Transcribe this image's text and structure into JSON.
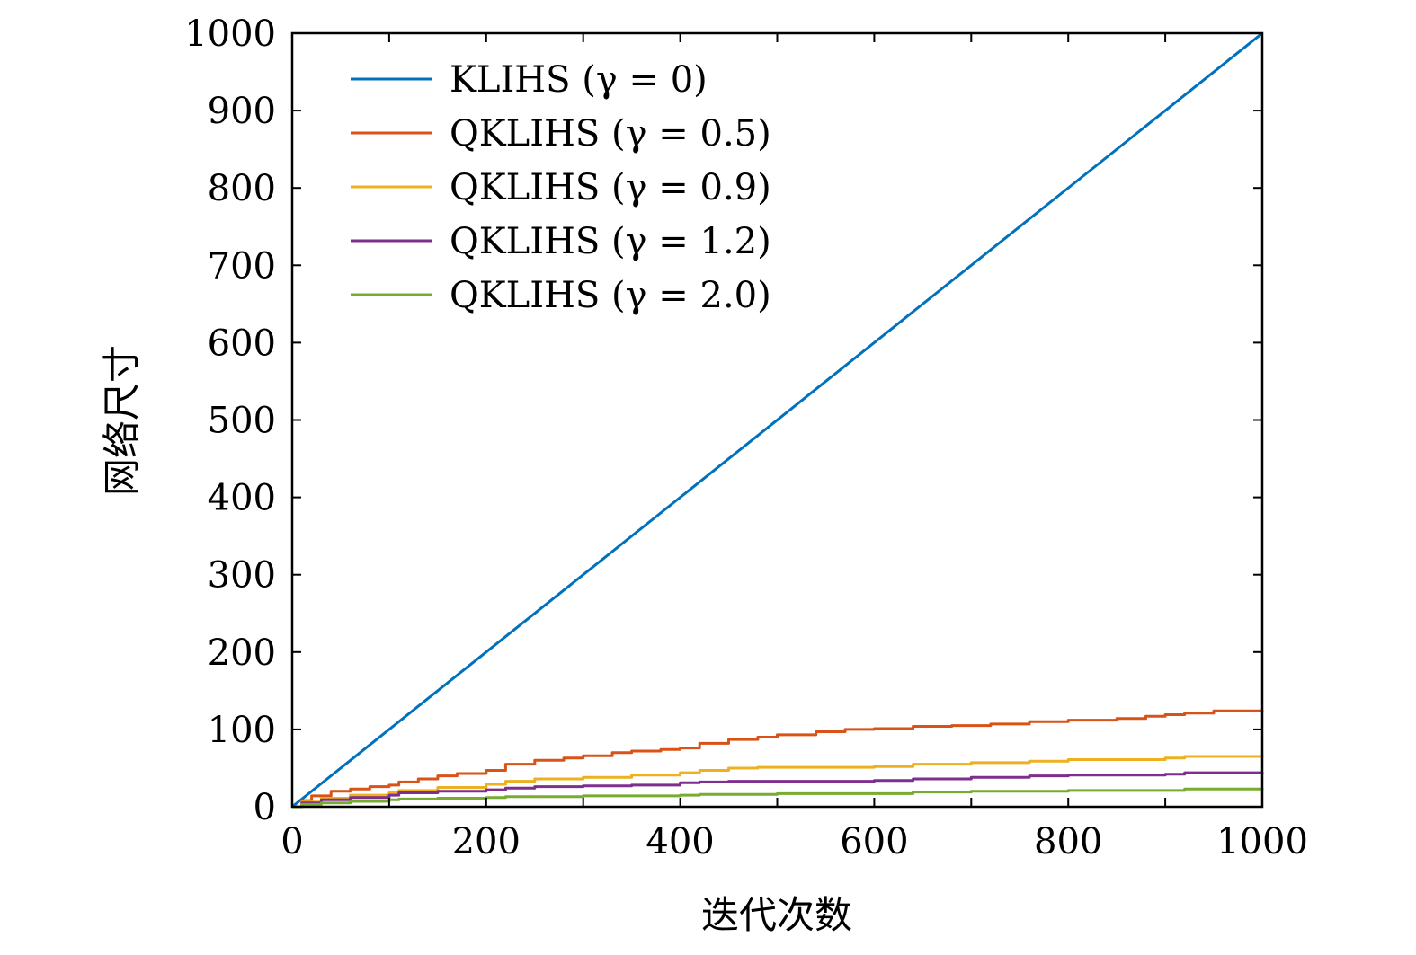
{
  "chart_data": {
    "type": "line",
    "title": "",
    "xlabel": "迭代次数",
    "ylabel": "网络尺寸",
    "xlim": [
      0,
      1000
    ],
    "ylim": [
      0,
      1000
    ],
    "xticks": [
      0,
      200,
      400,
      600,
      800,
      1000
    ],
    "yticks": [
      0,
      100,
      200,
      300,
      400,
      500,
      600,
      700,
      800,
      900,
      1000
    ],
    "xtick_labels": [
      "0",
      "200",
      "400",
      "600",
      "800",
      "1000"
    ],
    "ytick_labels": [
      "0",
      "100",
      "200",
      "300",
      "400",
      "500",
      "600",
      "700",
      "800",
      "900",
      "1000"
    ],
    "grid": false,
    "legend_position": "top-left",
    "series": [
      {
        "name": "KLIHS (γ = 0)",
        "color": "#0072BD",
        "x": [
          0,
          1000
        ],
        "y": [
          0,
          1000
        ]
      },
      {
        "name": "QKLIHS (γ = 0.5)",
        "color": "#D95319",
        "x": [
          0,
          10,
          20,
          40,
          60,
          80,
          100,
          110,
          130,
          150,
          170,
          200,
          220,
          250,
          280,
          300,
          330,
          350,
          380,
          400,
          420,
          450,
          480,
          500,
          540,
          570,
          600,
          640,
          680,
          720,
          760,
          800,
          850,
          880,
          900,
          920,
          950,
          1000
        ],
        "y": [
          0,
          8,
          14,
          20,
          23,
          26,
          28,
          32,
          36,
          40,
          43,
          47,
          55,
          60,
          63,
          66,
          70,
          72,
          74,
          76,
          82,
          87,
          90,
          93,
          97,
          100,
          101,
          104,
          105,
          107,
          110,
          112,
          114,
          117,
          119,
          121,
          124,
          125
        ]
      },
      {
        "name": "QKLIHS (γ = 0.9)",
        "color": "#EDB120",
        "x": [
          0,
          10,
          30,
          60,
          100,
          110,
          150,
          200,
          220,
          250,
          300,
          350,
          400,
          420,
          450,
          480,
          500,
          600,
          640,
          700,
          760,
          800,
          900,
          920,
          1000
        ],
        "y": [
          0,
          6,
          11,
          15,
          18,
          21,
          25,
          29,
          33,
          36,
          38,
          41,
          44,
          47,
          50,
          51,
          51,
          52,
          55,
          57,
          59,
          61,
          63,
          65,
          67
        ]
      },
      {
        "name": "QKLIHS (γ = 1.2)",
        "color": "#7E2F8E",
        "x": [
          0,
          10,
          30,
          60,
          100,
          110,
          150,
          200,
          220,
          250,
          300,
          350,
          400,
          420,
          450,
          480,
          500,
          600,
          640,
          700,
          760,
          800,
          900,
          920,
          1000
        ],
        "y": [
          0,
          5,
          9,
          12,
          15,
          18,
          20,
          22,
          24,
          26,
          27,
          28,
          31,
          32,
          33,
          33,
          33,
          34,
          36,
          38,
          40,
          41,
          42,
          44,
          45
        ]
      },
      {
        "name": "QKLIHS (γ = 2.0)",
        "color": "#77AC30",
        "x": [
          0,
          10,
          30,
          60,
          100,
          110,
          150,
          200,
          220,
          250,
          300,
          350,
          400,
          420,
          450,
          500,
          600,
          640,
          700,
          760,
          800,
          900,
          920,
          1000
        ],
        "y": [
          0,
          3,
          5,
          7,
          9,
          10,
          11,
          12,
          13,
          13,
          14,
          14,
          15,
          16,
          16,
          17,
          17,
          19,
          20,
          20,
          21,
          21,
          23,
          24
        ]
      }
    ]
  }
}
